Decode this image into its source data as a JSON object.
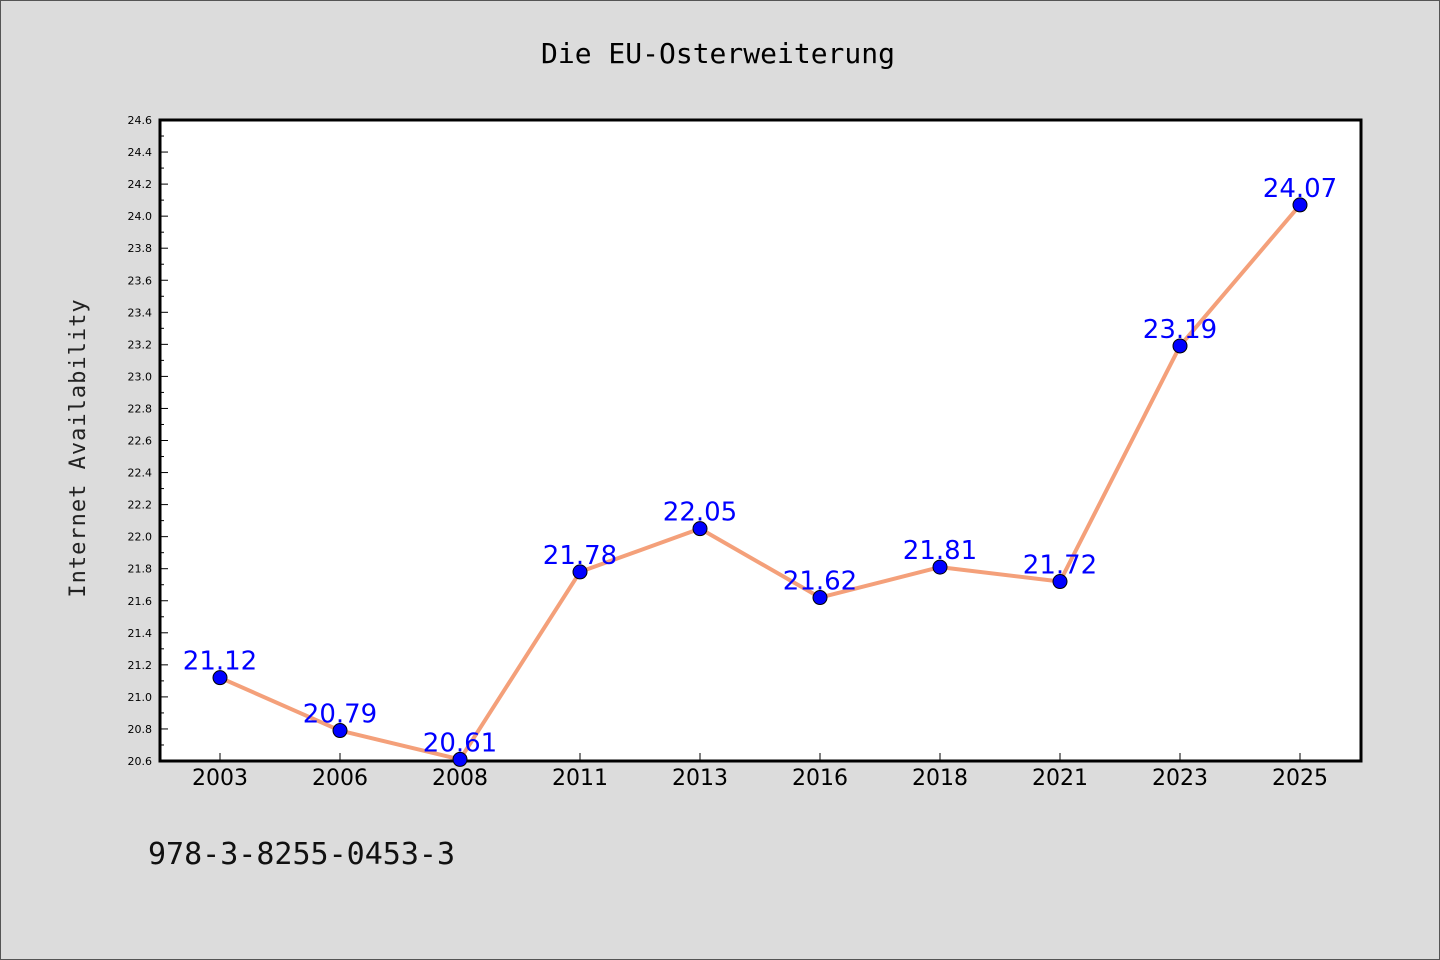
{
  "chart_data": {
    "type": "line",
    "title": "Die EU-Osterweiterung",
    "xlabel": "",
    "ylabel": "Internet Availability",
    "x": [
      "2003",
      "2006",
      "2008",
      "2011",
      "2013",
      "2016",
      "2018",
      "2021",
      "2023",
      "2025"
    ],
    "series": [
      {
        "values": [
          21.12,
          20.79,
          20.61,
          21.78,
          22.05,
          21.62,
          21.81,
          21.72,
          23.19,
          24.07
        ],
        "line_color": "#f4a07a",
        "marker_color": "#0000ff"
      }
    ],
    "data_labels": [
      "21.12",
      "20.79",
      "20.61",
      "21.78",
      "22.05",
      "21.62",
      "21.81",
      "21.72",
      "23.19",
      "24.07"
    ],
    "ylim": [
      20.6,
      24.6
    ],
    "y_ticks": [
      "20.6",
      "20.8",
      "21.0",
      "21.2",
      "21.4",
      "21.6",
      "21.8",
      "22.0",
      "22.2",
      "22.4",
      "22.6",
      "22.8",
      "23.0",
      "23.2",
      "23.4",
      "23.6",
      "23.8",
      "24.0",
      "24.2",
      "24.4",
      "24.6"
    ],
    "grid": false,
    "legend": "none",
    "background": "#dcdcdc",
    "plot_background": "#ffffff"
  },
  "footer": {
    "code": "978-3-8255-0453-3"
  }
}
